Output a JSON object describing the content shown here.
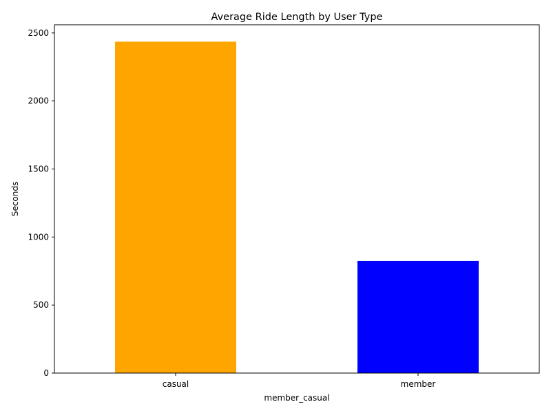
{
  "chart_data": {
    "type": "bar",
    "title": "Average Ride Length by User Type",
    "xlabel": "member_casual",
    "ylabel": "Seconds",
    "categories": [
      "casual",
      "member"
    ],
    "values": [
      2436,
      825
    ],
    "colors": [
      "#FFA500",
      "#0000FF"
    ],
    "ylim": [
      0,
      2560
    ],
    "yticks": [
      0,
      500,
      1000,
      1500,
      2000,
      2500
    ],
    "ytick_labels": [
      "0",
      "500",
      "1000",
      "1500",
      "2000",
      "2500"
    ],
    "grid": false,
    "legend": "none"
  }
}
